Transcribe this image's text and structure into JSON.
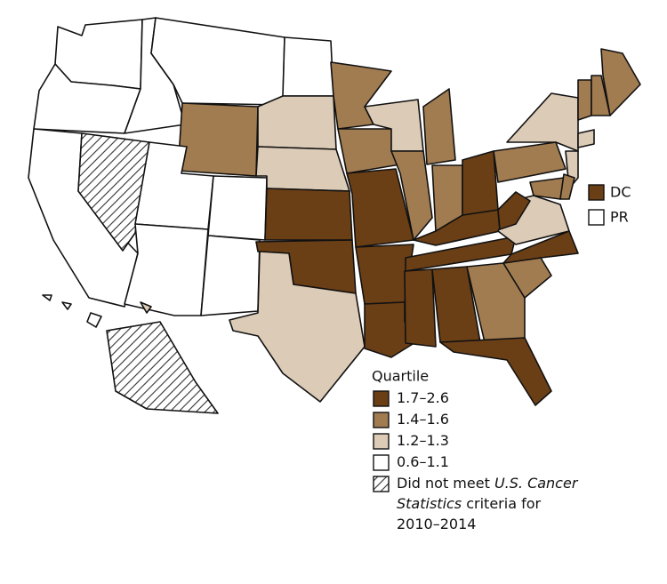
{
  "legend": {
    "title": "Quartile",
    "items": [
      {
        "lines": [
          [
            {
              "text": "1.7–2.6"
            }
          ]
        ],
        "color": "#6b3f16"
      },
      {
        "lines": [
          [
            {
              "text": "1.4–1.6"
            }
          ]
        ],
        "color": "#a27c51"
      },
      {
        "lines": [
          [
            {
              "text": "1.2–1.3"
            }
          ]
        ],
        "color": "#dccbb6"
      },
      {
        "lines": [
          [
            {
              "text": "0.6–1.1"
            }
          ]
        ],
        "color": "#ffffff"
      },
      {
        "lines": [
          [
            {
              "text": "Did not meet "
            },
            {
              "text": "U.S. Cancer",
              "italic": true
            }
          ],
          [
            {
              "text": "Statistics",
              "italic": true
            },
            {
              "text": " criteria for"
            }
          ],
          [
            {
              "text": "2010–2014"
            }
          ]
        ],
        "pattern": "hatch"
      }
    ]
  },
  "callouts": [
    {
      "label": "DC",
      "item": 0
    },
    {
      "label": "PR",
      "item": 3
    }
  ],
  "regions": [
    3,
    3,
    3,
    3,
    1,
    3,
    4,
    3,
    3,
    3,
    3,
    3,
    2,
    2,
    2,
    0,
    0,
    2,
    1,
    1,
    0,
    2,
    1,
    1,
    0,
    0,
    0,
    0,
    0,
    0,
    1,
    1,
    1,
    0,
    0,
    2,
    0,
    2,
    2,
    1,
    1,
    2,
    2,
    0,
    1,
    1,
    1,
    1,
    4,
    3,
    3,
    3
  ]
}
